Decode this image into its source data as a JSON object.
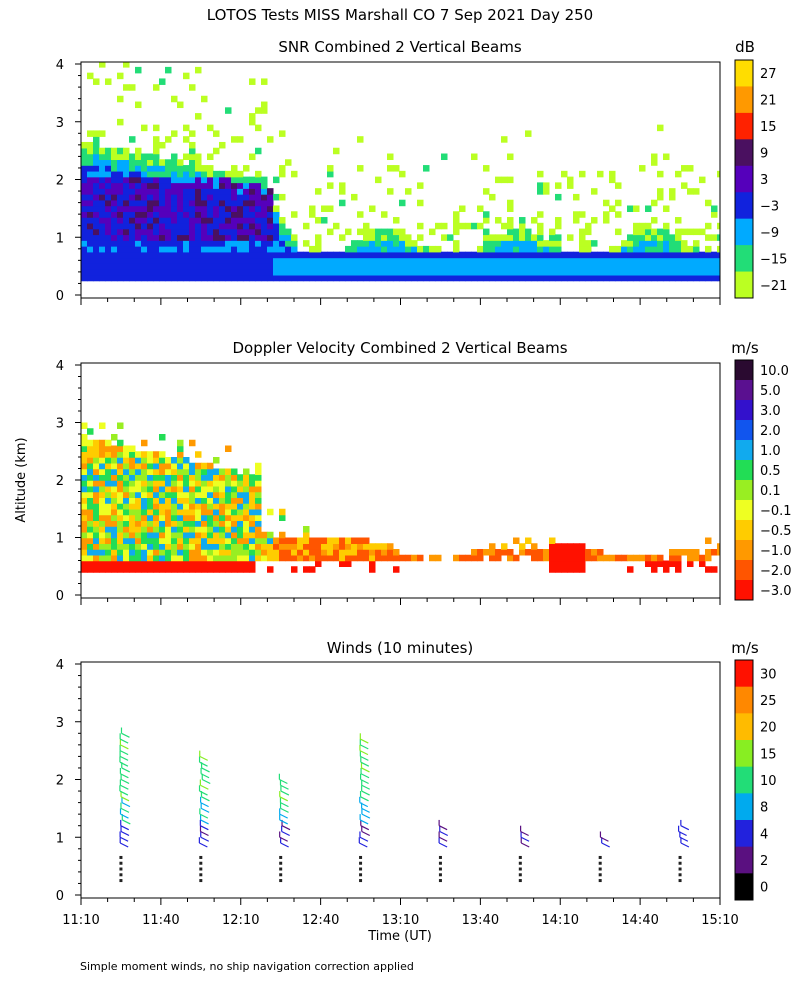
{
  "figure": {
    "title": "LOTOS Tests MISS Marshall CO   7 Sep 2021 Day 250",
    "ylabel": "Altitude (km)",
    "xlabel": "Time (UT)",
    "footnote": "Simple moment winds, no ship navigation correction applied",
    "time_ticks": [
      "11:10",
      "11:40",
      "12:10",
      "12:40",
      "13:10",
      "13:40",
      "14:10",
      "14:40",
      "15:10"
    ],
    "altitude_ticks": [
      "0",
      "1",
      "2",
      "3",
      "4"
    ]
  },
  "chart_data": [
    {
      "type": "heatmap",
      "title": "SNR Combined 2 Vertical Beams",
      "units": "dB",
      "xlim": [
        "11:10",
        "15:10"
      ],
      "ylim": [
        0,
        4
      ],
      "colorbar": {
        "labels": [
          "27",
          "21",
          "15",
          "9",
          "3",
          "−3",
          "−9",
          "−15",
          "−21"
        ],
        "colors": [
          "#ffdd00",
          "#ff9900",
          "#ff2200",
          "#4a1060",
          "#5500bb",
          "#1122dd",
          "#00aaff",
          "#22dd77",
          "#bbff22"
        ]
      },
      "description_values": {
        "low_layer_top_km": [
          2.7,
          2.2,
          1.8,
          1.1,
          0.7,
          0.7,
          0.7,
          0.7
        ],
        "time_samples": [
          "11:10",
          "11:40",
          "12:10",
          "12:40",
          "13:10",
          "13:40",
          "14:10",
          "15:10"
        ]
      }
    },
    {
      "type": "heatmap",
      "title": "Doppler Velocity Combined 2 Vertical Beams",
      "units": "m/s",
      "xlim": [
        "11:10",
        "15:10"
      ],
      "ylim": [
        0,
        4
      ],
      "colorbar": {
        "labels": [
          "10.0",
          "5.0",
          "3.0",
          "2.0",
          "1.0",
          "0.5",
          "0.1",
          "−0.1",
          "−0.5",
          "−1.0",
          "−2.0",
          "−3.0"
        ],
        "colors": [
          "#2a0a30",
          "#5a1090",
          "#3311cc",
          "#1155ee",
          "#11aaee",
          "#22dd55",
          "#99ee22",
          "#eeff22",
          "#ffcc00",
          "#ff9900",
          "#ff5500",
          "#ff1100"
        ]
      }
    },
    {
      "type": "scatter",
      "title": "Winds (10 minutes)",
      "units": "m/s",
      "xlim": [
        "11:10",
        "15:10"
      ],
      "ylim": [
        0,
        4
      ],
      "colorbar": {
        "labels": [
          "30",
          "25",
          "20",
          "15",
          "10",
          "8",
          "4",
          "2",
          "0"
        ],
        "colors": [
          "#ff1100",
          "#ff8800",
          "#ffbb00",
          "#88ee22",
          "#22dd77",
          "#00aaee",
          "#2222dd",
          "#5a1080",
          "#000000"
        ]
      },
      "profiles": [
        {
          "time": "11:25",
          "top_km": 2.9
        },
        {
          "time": "11:55",
          "top_km": 2.45
        },
        {
          "time": "12:25",
          "top_km": 2.05
        },
        {
          "time": "12:55",
          "top_km": 2.75
        },
        {
          "time": "13:25",
          "top_km": 1.25
        },
        {
          "time": "13:55",
          "top_km": 1.2
        },
        {
          "time": "14:25",
          "top_km": 1.05
        },
        {
          "time": "14:55",
          "top_km": 1.25
        }
      ]
    }
  ]
}
